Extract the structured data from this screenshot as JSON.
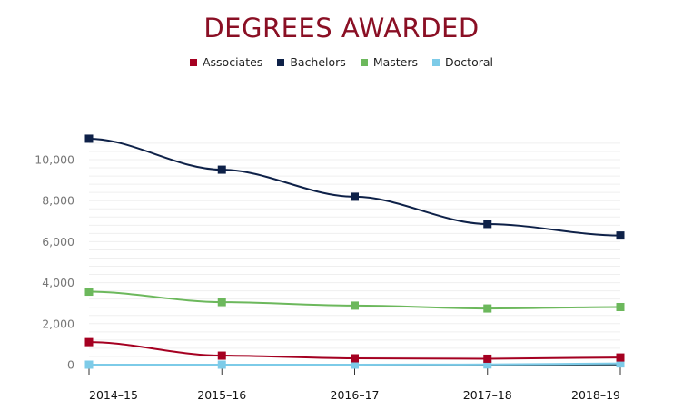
{
  "chart_data": {
    "type": "line",
    "title": "DEGREES AWARDED",
    "xlabel": "",
    "ylabel": "",
    "categories": [
      "2014–15",
      "2015–16",
      "2016–17",
      "2017–18",
      "2018–19"
    ],
    "ylim": [
      0,
      11000
    ],
    "yticks": [
      0,
      2000,
      4000,
      6000,
      8000,
      10000
    ],
    "ytick_labels": [
      "0",
      "2,000",
      "4,000",
      "6,000",
      "8,000",
      "10,000"
    ],
    "grid": true,
    "legend_position": "top",
    "series": [
      {
        "name": "Associates",
        "color": "#a50021",
        "values": [
          1100,
          440,
          310,
          290,
          350
        ]
      },
      {
        "name": "Bachelors",
        "color": "#0e2148",
        "values": [
          11020,
          9510,
          8190,
          6860,
          6300
        ]
      },
      {
        "name": "Masters",
        "color": "#6cb85c",
        "values": [
          3560,
          3050,
          2880,
          2740,
          2810
        ]
      },
      {
        "name": "Doctoral",
        "color": "#7dcbe8",
        "values": [
          0,
          0,
          0,
          10,
          60
        ]
      }
    ]
  }
}
